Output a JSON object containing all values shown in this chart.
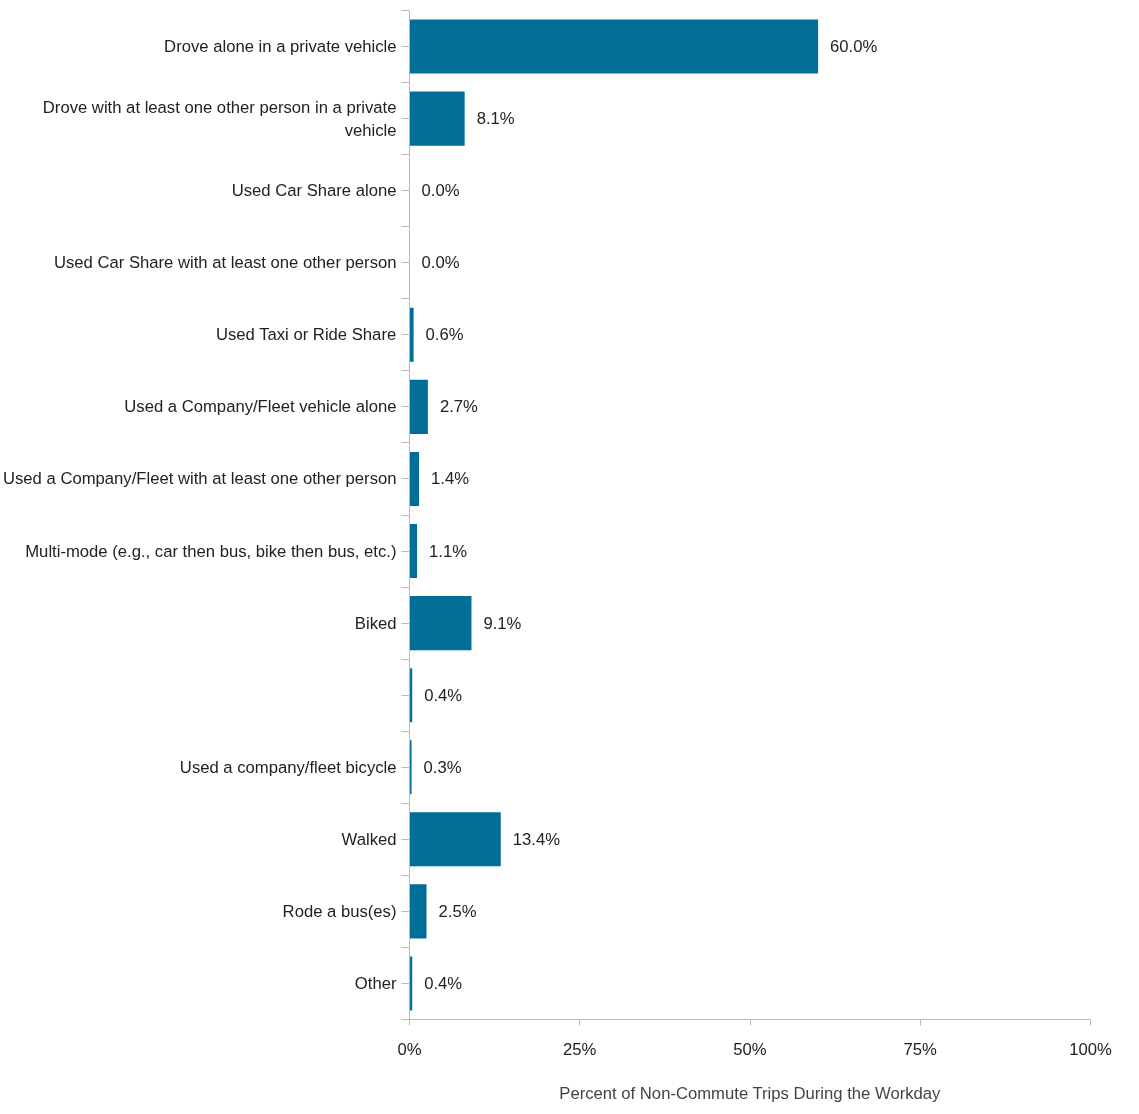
{
  "chart_data": {
    "type": "bar",
    "orientation": "horizontal",
    "xlabel": "Percent of Non-Commute Trips During the Workday",
    "categories": [
      "Drove alone in a private vehicle",
      "Drove with at least one other person in a private vehicle",
      "Used Car Share alone",
      "Used Car Share with at least one other person",
      "Used Taxi or Ride Share",
      "Used a Company/Fleet vehicle alone",
      "Used a Company/Fleet with at least one other person",
      "Multi-mode (e.g., car then bus, bike then bus, etc.)",
      "Biked",
      null,
      "Used a company/fleet bicycle",
      "Walked",
      "Rode a bus(es)",
      "Other"
    ],
    "values": [
      60.0,
      8.1,
      0.0,
      0.0,
      0.6,
      2.7,
      1.4,
      1.1,
      9.1,
      0.4,
      0.3,
      13.4,
      2.5,
      0.4
    ],
    "value_labels": [
      "60.0%",
      "8.1%",
      "0.0%",
      "0.0%",
      "0.6%",
      "2.7%",
      "1.4%",
      "1.1%",
      "9.1%",
      "0.4%",
      "0.3%",
      "13.4%",
      "2.5%",
      "0.4%"
    ],
    "color": "#006e96",
    "xlim": [
      0,
      100
    ],
    "xticks": [
      {
        "value": 0,
        "label": "0%"
      },
      {
        "value": 25,
        "label": "25%"
      },
      {
        "value": 50,
        "label": "50%"
      },
      {
        "value": 75,
        "label": "75%"
      },
      {
        "value": 100,
        "label": "100%"
      }
    ],
    "grid": false
  }
}
